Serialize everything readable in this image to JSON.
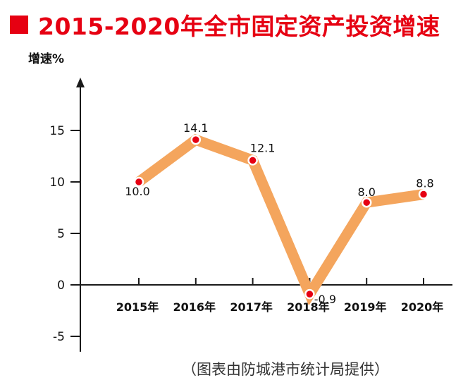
{
  "title": "2015-2020年全市固定资产投资增速",
  "source": "（图表由防城港市统计局提供）",
  "chart_data": {
    "type": "line",
    "title": "2015-2020年全市固定资产投资增速",
    "ylabel": "增速%",
    "xlabel": "",
    "categories": [
      "2015年",
      "2016年",
      "2017年",
      "2018年",
      "2019年",
      "2020年"
    ],
    "series": [
      {
        "values": [
          10.0,
          14.1,
          12.1,
          -0.9,
          8.0,
          8.8
        ]
      }
    ],
    "data_labels": [
      "10.0",
      "14.1",
      "12.1",
      "-0.9",
      "8.0",
      "8.8"
    ],
    "yticks": [
      -5,
      0,
      5,
      10,
      15
    ],
    "ytick_labels": [
      "-5",
      "0",
      "5",
      "10",
      "15"
    ],
    "ylim": [
      -6.5,
      19.5
    ],
    "grid": false,
    "legend": "none",
    "colors": {
      "title": "#e60012",
      "line": "#f4a55d",
      "marker": "#e60012",
      "axis": "#1a1a1a"
    }
  }
}
